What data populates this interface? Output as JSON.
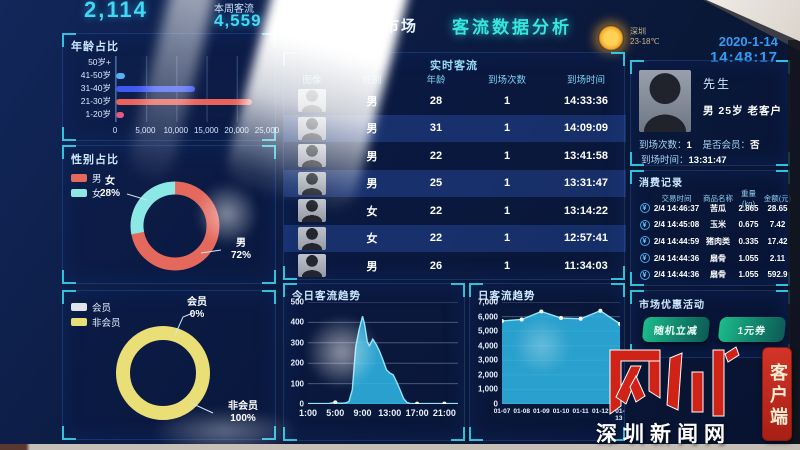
{
  "theme": {
    "accent": "#38dcf2",
    "number": "#3fd8f5",
    "button_green": "#16a97f",
    "logo_red": "#cf2318"
  },
  "header": {
    "market": "市场",
    "title": "客流数据分析",
    "city": "深圳",
    "temp": "23-18℃",
    "date": "2020-1-14",
    "time": "14:48:17"
  },
  "stats": {
    "today": "2,114",
    "week_label": "本周客流",
    "week": "4,559"
  },
  "panels": {
    "age": {
      "title": "年龄占比"
    },
    "gender": {
      "title": "性别占比",
      "legend": [
        {
          "label": "男",
          "color": "#e4685c"
        },
        {
          "label": "女",
          "color": "#8ce8e4"
        }
      ],
      "label_female": "女",
      "pct_female": "28%",
      "label_male": "男",
      "pct_male": "72%"
    },
    "member": {
      "legend": [
        {
          "label": "会员",
          "color": "#dfe3ea"
        },
        {
          "label": "非会员",
          "color": "#eadf76"
        }
      ],
      "label_member": "会员",
      "pct_member": "0%",
      "label_nonmember": "非会员",
      "pct_nonmember": "100%"
    },
    "realtime": {
      "title": "实时客流",
      "headers": [
        "图像",
        "性别",
        "年龄",
        "到场次数",
        "到场时间"
      ],
      "rows": [
        {
          "gender": "男",
          "age": "28",
          "visits": "1",
          "time": "14:33:36"
        },
        {
          "gender": "男",
          "age": "31",
          "visits": "1",
          "time": "14:09:09"
        },
        {
          "gender": "男",
          "age": "22",
          "visits": "1",
          "time": "13:41:58"
        },
        {
          "gender": "男",
          "age": "25",
          "visits": "1",
          "time": "13:31:47"
        },
        {
          "gender": "女",
          "age": "22",
          "visits": "1",
          "time": "13:14:22"
        },
        {
          "gender": "女",
          "age": "22",
          "visits": "1",
          "time": "12:57:41"
        },
        {
          "gender": "男",
          "age": "26",
          "visits": "1",
          "time": "11:34:03"
        }
      ]
    },
    "today": {
      "title": "今日客流趋势"
    },
    "daily": {
      "title": "日客流趋势"
    },
    "profile": {
      "salutation": "先生",
      "info": "男  25岁  老客户",
      "visits_label": "到场次数：",
      "visits": "1",
      "member_label": "是否会员：",
      "member": "否",
      "time_label": "到场时间：",
      "time": "13:31:47"
    },
    "consume": {
      "title": "消费记录",
      "currency_icon": "¥",
      "headers": [
        "",
        "交易时间",
        "商品名称",
        "重量(kg)",
        "金额(元)"
      ],
      "rows": [
        [
          "2/4 14:46:37",
          "苦瓜",
          "2.865",
          "28.65"
        ],
        [
          "2/4 14:45:08",
          "玉米",
          "0.675",
          "7.42"
        ],
        [
          "2/4 14:44:59",
          "猪肉类",
          "0.335",
          "17.42"
        ],
        [
          "2/4 14:44:36",
          "扇骨",
          "1.055",
          "2.11"
        ],
        [
          "2/4 14:44:36",
          "扇骨",
          "1.055",
          "592.9"
        ]
      ]
    },
    "promo": {
      "title": "市场优惠活动",
      "buttons": [
        "随机立减",
        "1元券"
      ]
    }
  },
  "watermark": {
    "site": "深圳新闻网",
    "seal": "客户端"
  },
  "chart_data": [
    {
      "id": "age",
      "type": "bar",
      "orientation": "horizontal",
      "title": "年龄占比",
      "categories": [
        "50岁+",
        "41-50岁",
        "31-40岁",
        "21-30岁",
        "1-20岁"
      ],
      "values": [
        0,
        1500,
        13000,
        22500,
        1300
      ],
      "colors": [
        "#4ab4f0",
        "#57aef5",
        "#3f5af0",
        "#e9635a",
        "#e05a86"
      ],
      "xlim": [
        0,
        25000
      ],
      "xticks": [
        0,
        5000,
        10000,
        15000,
        20000,
        25000
      ],
      "xtick_labels": [
        "0",
        "5,000",
        "10,000",
        "15,000",
        "20,000",
        "25,000"
      ]
    },
    {
      "id": "gender",
      "type": "pie",
      "title": "性别占比",
      "donut": true,
      "labels": [
        "男",
        "女"
      ],
      "values": [
        72,
        28
      ],
      "colors": [
        "#e4685c",
        "#8ce8e4"
      ]
    },
    {
      "id": "member",
      "type": "pie",
      "donut": true,
      "labels": [
        "会员",
        "非会员"
      ],
      "values": [
        0,
        100
      ],
      "colors": [
        "#dfe3ea",
        "#eadf76"
      ]
    },
    {
      "id": "today",
      "type": "area",
      "title": "今日客流趋势",
      "color": "#2fb9e8",
      "x": [
        1,
        2,
        3,
        4,
        5,
        5.5,
        6,
        6.5,
        7,
        7.5,
        8,
        8.5,
        9,
        9.3,
        9.7,
        10,
        10.5,
        11,
        11.5,
        12,
        12.5,
        13,
        13.5,
        14,
        14.5,
        15,
        15.5,
        16,
        17,
        18,
        19,
        20,
        21,
        22,
        23
      ],
      "values": [
        2,
        2,
        2,
        2,
        8,
        4,
        4,
        5,
        12,
        70,
        280,
        365,
        430,
        390,
        305,
        285,
        318,
        292,
        258,
        215,
        168,
        152,
        143,
        108,
        70,
        28,
        8,
        2,
        2,
        2,
        2,
        2,
        2,
        2,
        2
      ],
      "xlim": [
        1,
        23
      ],
      "ylim": [
        0,
        500
      ],
      "yticks": [
        0,
        100,
        200,
        300,
        400,
        500
      ],
      "ytick_labels": [
        "0",
        "100",
        "200",
        "300",
        "400",
        "500"
      ],
      "xtick_pos": [
        1,
        5,
        9,
        13,
        17,
        21
      ],
      "xtick_labels": [
        "1:00",
        "5:00",
        "9:00",
        "13:00",
        "17:00",
        "21:00"
      ],
      "dot_idx": [
        4,
        28,
        32
      ]
    },
    {
      "id": "daily",
      "type": "line",
      "title": "日客流趋势",
      "color": "#2fb9e8",
      "categories": [
        "01-07",
        "01-08",
        "01-09",
        "01-10",
        "01-11",
        "01-12",
        "01-13"
      ],
      "values": [
        5700,
        5800,
        6350,
        5900,
        5850,
        6400,
        5500
      ],
      "ylim": [
        0,
        7000
      ],
      "yticks": [
        0,
        1000,
        2000,
        3000,
        4000,
        5000,
        6000,
        7000
      ],
      "ytick_labels": [
        "0",
        "1,000",
        "2,000",
        "3,000",
        "4,000",
        "5,000",
        "6,000",
        "7,000"
      ],
      "dot_idx": [
        0,
        1,
        2,
        3,
        4,
        5,
        6
      ]
    }
  ]
}
